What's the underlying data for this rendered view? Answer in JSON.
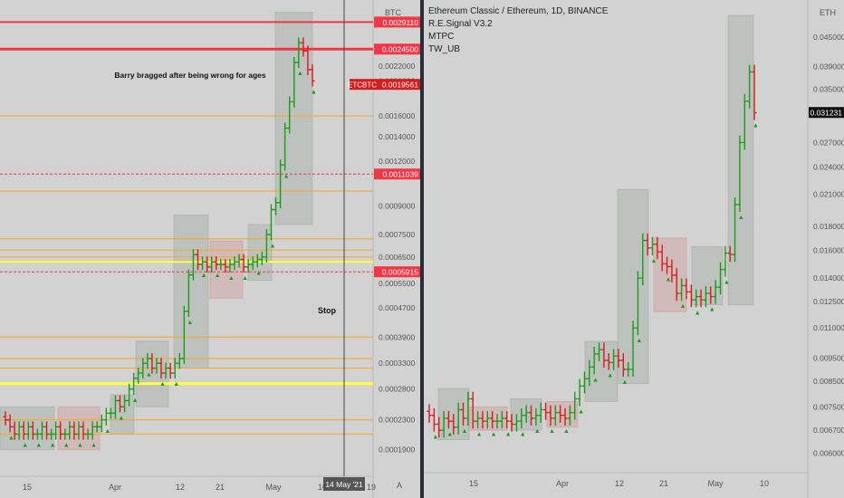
{
  "left_chart": {
    "currency": "BTC",
    "symbol_tag": "ETCBTC",
    "scale_mode": "A",
    "annotation": "Barry bragged after being wrong for ages",
    "stop_label": "Stop",
    "cursor_date": "14 May '21",
    "y_ticks": [
      "0.0029110",
      "0.0024500",
      "0.0022000",
      "0.0020000",
      "0.0019561",
      "0.0016000",
      "0.0014000",
      "0.0012000",
      "0.0011039",
      "0.0009000",
      "0.0007500",
      "0.0006500",
      "0.0005915",
      "0.0005500",
      "0.0004700",
      "0.0003900",
      "0.0003300",
      "0.0002800",
      "0.0002300",
      "0.0001900"
    ],
    "x_ticks": [
      "15",
      "Apr",
      "12",
      "21",
      "May",
      "10",
      "19"
    ],
    "colors": {
      "red_line": "#f23645",
      "orange_line": "#f5a623",
      "yellow_line": "#ffff3c",
      "bull": "#1a9b1a",
      "bear": "#d61c1c"
    }
  },
  "right_chart": {
    "currency": "ETH",
    "current_price": "0.031231",
    "legend": {
      "title": "Ethereum Classic / Ethereum, 1D, BINANCE",
      "items": [
        "R.E.Signal V3.2",
        "MTPC",
        "TW_UB"
      ]
    },
    "y_ticks": [
      "0.045000",
      "0.039000",
      "0.035000",
      "0.031231",
      "0.027000",
      "0.024000",
      "0.021000",
      "0.018000",
      "0.016000",
      "0.014000",
      "0.012500",
      "0.011000",
      "0.009500",
      "0.008500",
      "0.007500",
      "0.006700",
      "0.006000"
    ],
    "x_ticks": [
      "15",
      "Apr",
      "12",
      "21",
      "May",
      "10"
    ]
  },
  "chart_data": [
    {
      "type": "candlestick",
      "title": "ETCBTC",
      "ylabel": "BTC",
      "scale": "log",
      "ylim": [
        0.00017,
        0.0032
      ],
      "last": 0.0019561,
      "horizontal_levels": [
        0.002911,
        0.00245,
        0.0011039,
        0.0005915
      ],
      "close": [
        0.00023,
        0.00022,
        0.00021,
        0.00022,
        0.00021,
        0.00022,
        0.00021,
        0.00021,
        0.00022,
        0.00021,
        0.00021,
        0.00022,
        0.00021,
        0.00021,
        0.00022,
        0.00021,
        0.00022,
        0.00021,
        0.00021,
        0.00022,
        0.00022,
        0.00023,
        0.00024,
        0.00024,
        0.00026,
        0.00025,
        0.00026,
        0.00028,
        0.0003,
        0.00031,
        0.00033,
        0.00034,
        0.00032,
        0.00033,
        0.00031,
        0.00032,
        0.00031,
        0.00033,
        0.00034,
        0.00046,
        0.00058,
        0.00066,
        0.00062,
        0.00063,
        0.00061,
        0.00063,
        0.00062,
        0.00062,
        0.00061,
        0.00062,
        0.00063,
        0.00064,
        0.00061,
        0.00062,
        0.00063,
        0.00064,
        0.00065,
        0.00075,
        0.00088,
        0.00092,
        0.00117,
        0.00148,
        0.00175,
        0.00225,
        0.00255,
        0.00242,
        0.00215,
        0.002
      ]
    },
    {
      "type": "candlestick",
      "title": "Ethereum Classic / Ethereum, 1D, BINANCE",
      "ylabel": "ETH",
      "scale": "log",
      "ylim": [
        0.0057,
        0.052
      ],
      "last": 0.031231,
      "close": [
        0.0072,
        0.0069,
        0.0067,
        0.0071,
        0.007,
        0.0068,
        0.0074,
        0.0071,
        0.0078,
        0.007,
        0.0071,
        0.007,
        0.0071,
        0.007,
        0.007,
        0.0071,
        0.007,
        0.0069,
        0.007,
        0.0072,
        0.0073,
        0.0071,
        0.0072,
        0.0074,
        0.0073,
        0.0071,
        0.0073,
        0.0072,
        0.0071,
        0.0073,
        0.0078,
        0.0083,
        0.0086,
        0.0091,
        0.0097,
        0.0099,
        0.0094,
        0.0093,
        0.0096,
        0.0094,
        0.009,
        0.009,
        0.011,
        0.014,
        0.0168,
        0.0162,
        0.0165,
        0.0159,
        0.015,
        0.0148,
        0.0142,
        0.013,
        0.0135,
        0.0131,
        0.0126,
        0.0128,
        0.0126,
        0.013,
        0.0128,
        0.0134,
        0.0146,
        0.0158,
        0.0157,
        0.02,
        0.027,
        0.033,
        0.038,
        0.0312
      ]
    }
  ]
}
